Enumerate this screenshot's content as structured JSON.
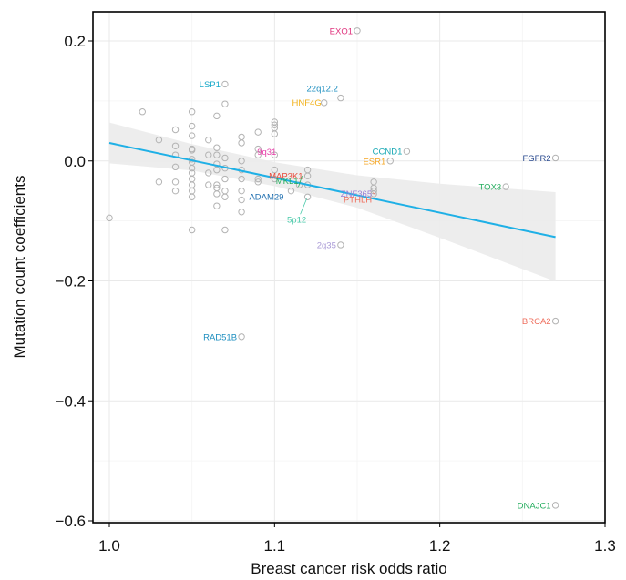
{
  "chart_data": {
    "type": "scatter",
    "xlabel": "Breast cancer risk odds ratio",
    "ylabel": "Mutation count coefficients",
    "xlim": [
      0.99,
      1.3
    ],
    "ylim": [
      -0.6,
      0.25
    ],
    "xticks": [
      {
        "value": 1.0,
        "label": "1.0"
      },
      {
        "value": 1.1,
        "label": "1.1"
      },
      {
        "value": 1.2,
        "label": "1.2"
      },
      {
        "value": 1.3,
        "label": "1.3"
      }
    ],
    "yticks": [
      {
        "value": 0.2,
        "label": "0.2"
      },
      {
        "value": 0.0,
        "label": "0.0"
      },
      {
        "value": -0.2,
        "label": "−0.2"
      },
      {
        "value": -0.4,
        "label": "−0.4"
      },
      {
        "value": -0.6,
        "label": "−0.6"
      }
    ],
    "grid": true,
    "point_color": "#b3b3b3",
    "trend_color": "#1fb0e6",
    "band_color": "#ebebeb",
    "trend_line": {
      "x": [
        1.0,
        1.27
      ],
      "y": [
        0.03,
        -0.127
      ]
    },
    "confidence_band": {
      "x": [
        1.0,
        1.05,
        1.1,
        1.15,
        1.2,
        1.27
      ],
      "upper": [
        0.064,
        0.028,
        -0.002,
        -0.024,
        -0.038,
        -0.052
      ],
      "lower": [
        -0.004,
        -0.016,
        -0.042,
        -0.078,
        -0.128,
        -0.201
      ]
    },
    "labeled_points": [
      {
        "label": "EXO1",
        "x": 1.15,
        "y": 0.217,
        "color": "#e0347e"
      },
      {
        "label": "LSP1",
        "x": 1.07,
        "y": 0.128,
        "color": "#16a9c9"
      },
      {
        "label": "22q12.2",
        "x": 1.14,
        "y": 0.105,
        "color": "#1e8fc0"
      },
      {
        "label": "HNF4G",
        "x": 1.13,
        "y": 0.097,
        "color": "#f2b21b"
      },
      {
        "label": "9q31",
        "x": 1.1,
        "y": 0.01,
        "color": "#e53ea8"
      },
      {
        "label": "CCND1",
        "x": 1.18,
        "y": 0.016,
        "color": "#19a9b5"
      },
      {
        "label": "ESR1",
        "x": 1.17,
        "y": 0.0,
        "color": "#f5a623"
      },
      {
        "label": "FGFR2",
        "x": 1.27,
        "y": 0.005,
        "color": "#2a4a8f"
      },
      {
        "label": "MAP3K1",
        "x": 1.12,
        "y": -0.025,
        "color": "#e74c3c"
      },
      {
        "label": "TOX3",
        "x": 1.24,
        "y": -0.043,
        "color": "#27ae60"
      },
      {
        "label": "MKL1",
        "x": 1.115,
        "y": -0.04,
        "color": "#27ae60"
      },
      {
        "label": "ZNF365",
        "x": 1.16,
        "y": -0.055,
        "color": "#9b7fd6"
      },
      {
        "label": "ADAM29",
        "x": 1.11,
        "y": -0.05,
        "color": "#1f6fb0"
      },
      {
        "label": "PTHLH",
        "x": 1.16,
        "y": -0.05,
        "color": "#ef6f5e"
      },
      {
        "label": "5p12",
        "x": 1.12,
        "y": -0.06,
        "color": "#48c9a9"
      },
      {
        "label": "2q35",
        "x": 1.14,
        "y": -0.14,
        "color": "#a99ad6"
      },
      {
        "label": "BRCA2",
        "x": 1.27,
        "y": -0.267,
        "color": "#ef6f5e"
      },
      {
        "label": "RAD51B",
        "x": 1.08,
        "y": -0.293,
        "color": "#1e8fc0"
      },
      {
        "label": "DNAJC1",
        "x": 1.27,
        "y": -0.574,
        "color": "#27ae60"
      }
    ],
    "unlabeled_points": [
      [
        1.0,
        -0.095
      ],
      [
        1.02,
        0.082
      ],
      [
        1.03,
        0.035
      ],
      [
        1.03,
        -0.035
      ],
      [
        1.04,
        0.052
      ],
      [
        1.04,
        0.025
      ],
      [
        1.04,
        0.01
      ],
      [
        1.04,
        -0.01
      ],
      [
        1.04,
        -0.035
      ],
      [
        1.04,
        -0.05
      ],
      [
        1.05,
        0.082
      ],
      [
        1.05,
        0.058
      ],
      [
        1.05,
        0.042
      ],
      [
        1.05,
        0.02
      ],
      [
        1.05,
        0.018
      ],
      [
        1.05,
        0.003
      ],
      [
        1.05,
        -0.002
      ],
      [
        1.05,
        -0.012
      ],
      [
        1.05,
        -0.02
      ],
      [
        1.05,
        -0.03
      ],
      [
        1.05,
        -0.04
      ],
      [
        1.05,
        -0.05
      ],
      [
        1.05,
        -0.06
      ],
      [
        1.05,
        -0.115
      ],
      [
        1.06,
        0.035
      ],
      [
        1.06,
        0.01
      ],
      [
        1.06,
        -0.02
      ],
      [
        1.06,
        -0.04
      ],
      [
        1.065,
        0.075
      ],
      [
        1.065,
        0.022
      ],
      [
        1.065,
        0.01
      ],
      [
        1.065,
        -0.005
      ],
      [
        1.065,
        -0.015
      ],
      [
        1.065,
        -0.04
      ],
      [
        1.065,
        -0.045
      ],
      [
        1.065,
        -0.055
      ],
      [
        1.065,
        -0.075
      ],
      [
        1.07,
        0.095
      ],
      [
        1.07,
        0.005
      ],
      [
        1.07,
        -0.012
      ],
      [
        1.07,
        -0.03
      ],
      [
        1.07,
        -0.05
      ],
      [
        1.07,
        -0.06
      ],
      [
        1.07,
        -0.115
      ],
      [
        1.08,
        0.04
      ],
      [
        1.08,
        0.03
      ],
      [
        1.08,
        0.0
      ],
      [
        1.08,
        -0.015
      ],
      [
        1.08,
        -0.03
      ],
      [
        1.08,
        -0.05
      ],
      [
        1.08,
        -0.065
      ],
      [
        1.08,
        -0.085
      ],
      [
        1.09,
        0.048
      ],
      [
        1.09,
        0.02
      ],
      [
        1.09,
        0.01
      ],
      [
        1.09,
        -0.03
      ],
      [
        1.09,
        -0.035
      ],
      [
        1.1,
        0.065
      ],
      [
        1.1,
        0.06
      ],
      [
        1.1,
        0.055
      ],
      [
        1.1,
        0.045
      ],
      [
        1.1,
        -0.015
      ],
      [
        1.1,
        -0.03
      ],
      [
        1.12,
        -0.015
      ],
      [
        1.12,
        -0.04
      ],
      [
        1.16,
        -0.035
      ],
      [
        1.16,
        -0.045
      ]
    ]
  }
}
